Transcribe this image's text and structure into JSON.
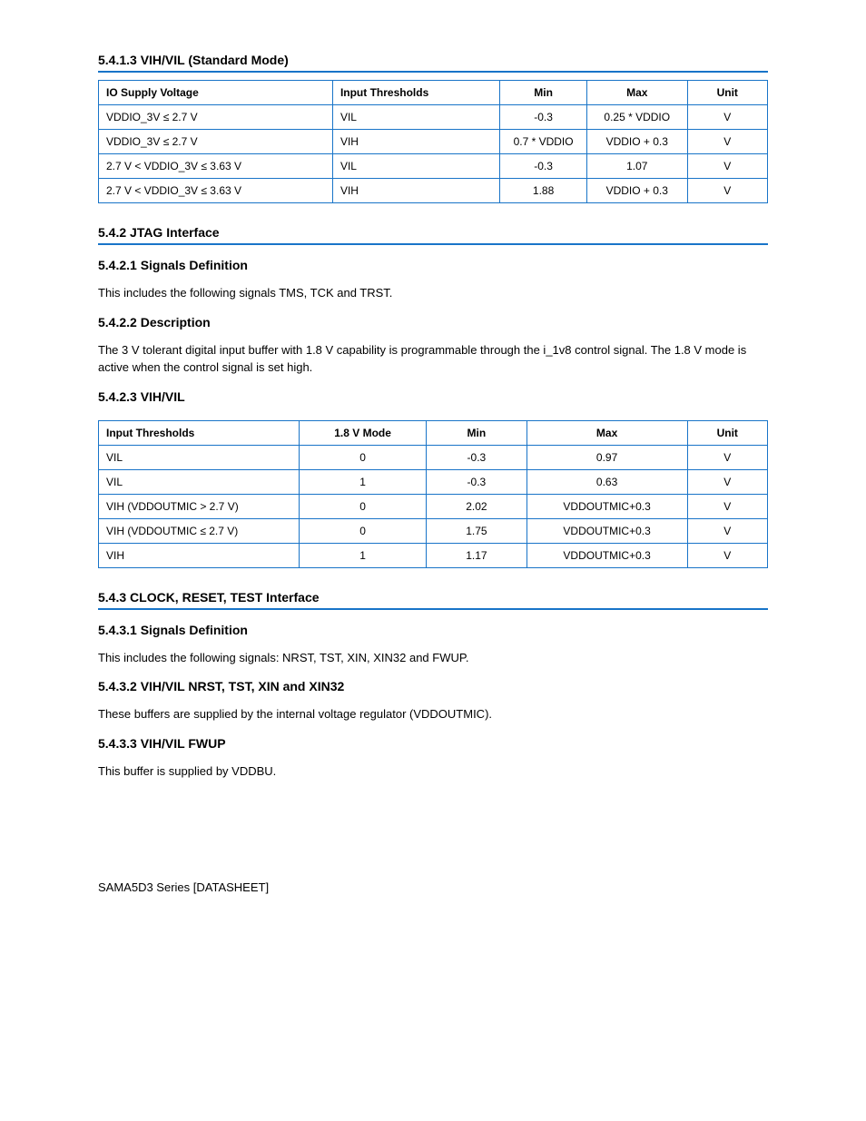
{
  "colors": {
    "rule": "#1874c8",
    "text": "#000000",
    "background": "#ffffff"
  },
  "fonts": {
    "body_pt": 13,
    "table_pt": 12,
    "heading_pt": 14
  },
  "section1": {
    "title": "5.4.1.3 VIH/VIL (Standard Mode)",
    "table": {
      "columns": [
        "IO Supply Voltage",
        "Input Thresholds",
        "Min",
        "Max",
        "Unit"
      ],
      "column_align": [
        "left",
        "left",
        "center",
        "center",
        "center"
      ],
      "col_widths_pct": [
        35,
        25,
        13,
        15,
        12
      ],
      "rows": [
        [
          "VDDIO_3V ≤ 2.7 V",
          "VIL",
          "-0.3",
          "0.25 * VDDIO",
          "V"
        ],
        [
          "VDDIO_3V ≤ 2.7 V",
          "VIH",
          "0.7 * VDDIO",
          "VDDIO + 0.3",
          "V"
        ],
        [
          "2.7 V < VDDIO_3V ≤ 3.63 V",
          "VIL",
          "-0.3",
          "1.07",
          "V"
        ],
        [
          "2.7 V < VDDIO_3V ≤ 3.63 V",
          "VIH",
          "1.88",
          "VDDIO + 0.3",
          "V"
        ]
      ]
    }
  },
  "section2": {
    "title": "5.4.2 JTAG Interface",
    "p1_title": "5.4.2.1 Signals Definition",
    "p1_body": "This includes the following signals TMS, TCK and TRST.",
    "p2_title": "5.4.2.2 Description",
    "p2_body": "The 3 V tolerant digital input buffer with 1.8 V capability is programmable through the i_1v8 control signal. The 1.8 V mode is active when the control signal is set high.",
    "p3_title": "5.4.2.3 VIH/VIL",
    "table": {
      "columns": [
        "Input Thresholds",
        "1.8 V Mode",
        "Min",
        "Max",
        "Unit"
      ],
      "column_align": [
        "left",
        "center",
        "center",
        "center",
        "center"
      ],
      "col_widths_pct": [
        30,
        19,
        15,
        24,
        12
      ],
      "rows": [
        [
          "VIL",
          "0",
          "-0.3",
          "0.97",
          "V"
        ],
        [
          "VIL",
          "1",
          "-0.3",
          "0.63",
          "V"
        ],
        [
          "VIH (VDDOUTMIC > 2.7 V)",
          "0",
          "2.02",
          "VDDOUTMIC+0.3",
          "V"
        ],
        [
          "VIH (VDDOUTMIC ≤ 2.7 V)",
          "0",
          "1.75",
          "VDDOUTMIC+0.3",
          "V"
        ],
        [
          "VIH",
          "1",
          "1.17",
          "VDDOUTMIC+0.3",
          "V"
        ]
      ]
    }
  },
  "section3": {
    "title": "5.4.3 CLOCK, RESET, TEST Interface",
    "p1_title": "5.4.3.1 Signals Definition",
    "p1_body": "This includes the following signals: NRST, TST, XIN, XIN32 and FWUP.",
    "p2_title": "5.4.3.2 VIH/VIL NRST, TST, XIN and XIN32",
    "p2_body": "These buffers are supplied by the internal voltage regulator (VDDOUTMIC).",
    "p3_title": "5.4.3.3 VIH/VIL FWUP",
    "p3_body": "This buffer is supplied by VDDBU."
  },
  "footer_text": "SAMA5D3 Series [DATASHEET]"
}
